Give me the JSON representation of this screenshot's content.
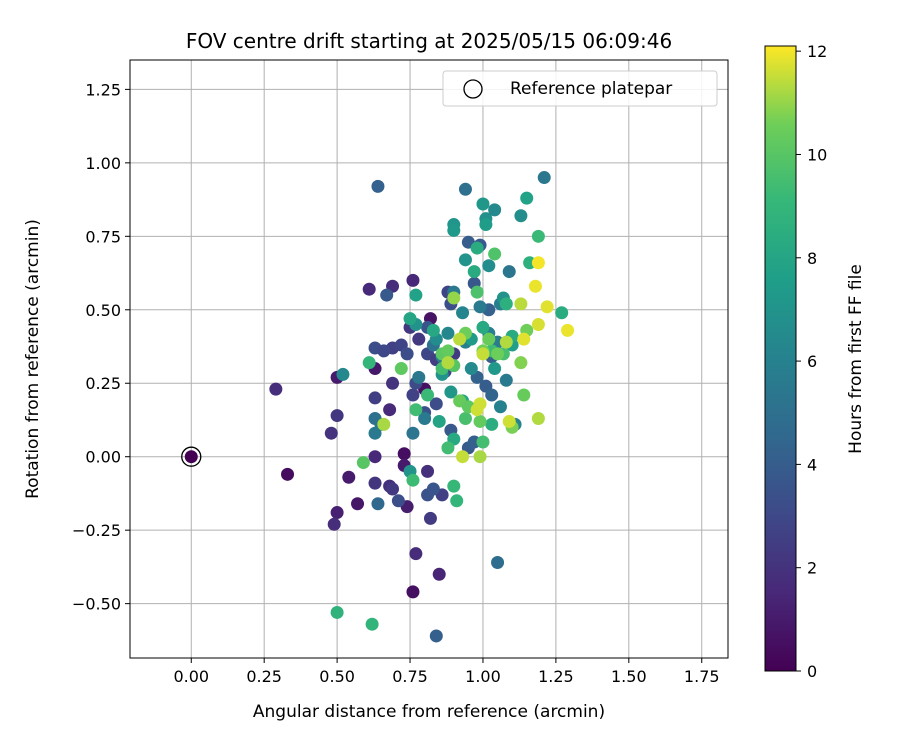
{
  "chart_data": {
    "type": "scatter",
    "title": "FOV centre drift starting at 2025/05/15 06:09:46",
    "xlabel": "Angular distance from reference (arcmin)",
    "ylabel": "Rotation from reference (arcmin)",
    "xlim": [
      -0.21,
      1.84
    ],
    "ylim": [
      -0.685,
      1.35
    ],
    "xticks": [
      "0.00",
      "0.25",
      "0.50",
      "0.75",
      "1.00",
      "1.25",
      "1.50",
      "1.75"
    ],
    "xtick_values": [
      0,
      0.25,
      0.5,
      0.75,
      1.0,
      1.25,
      1.5,
      1.75
    ],
    "yticks": [
      "−0.50",
      "−0.25",
      "0.00",
      "0.25",
      "0.50",
      "0.75",
      "1.00",
      "1.25"
    ],
    "ytick_values": [
      -0.5,
      -0.25,
      0,
      0.25,
      0.5,
      0.75,
      1.0,
      1.25
    ],
    "grid": true,
    "colormap": "viridis",
    "colorbar": {
      "label": "Hours from first FF file",
      "range": [
        0,
        12.1
      ],
      "ticks": [
        "0",
        "2",
        "4",
        "6",
        "8",
        "10",
        "12"
      ],
      "tick_values": [
        0,
        2,
        4,
        6,
        8,
        10,
        12
      ]
    },
    "legend": {
      "position": "top-right",
      "entries": [
        "Reference platepar"
      ]
    },
    "reference_point": {
      "x": 0.0,
      "y": 0.0,
      "c": 0.0
    },
    "points": [
      {
        "x": 0.33,
        "y": -0.06,
        "c": 0.4
      },
      {
        "x": 0.57,
        "y": -0.16,
        "c": 0.8
      },
      {
        "x": 0.76,
        "y": -0.46,
        "c": 0.6
      },
      {
        "x": 0.54,
        "y": -0.07,
        "c": 1.0
      },
      {
        "x": 0.5,
        "y": -0.19,
        "c": 1.2
      },
      {
        "x": 0.5,
        "y": 0.27,
        "c": 1.0
      },
      {
        "x": 0.82,
        "y": 0.47,
        "c": 0.7
      },
      {
        "x": 0.73,
        "y": 0.01,
        "c": 0.5
      },
      {
        "x": 0.63,
        "y": 0.3,
        "c": 0.9
      },
      {
        "x": 0.8,
        "y": 0.23,
        "c": 0.6
      },
      {
        "x": 0.74,
        "y": -0.17,
        "c": 1.1
      },
      {
        "x": 0.73,
        "y": -0.03,
        "c": 1.0
      },
      {
        "x": 0.29,
        "y": 0.23,
        "c": 1.8
      },
      {
        "x": 0.48,
        "y": 0.08,
        "c": 2.0
      },
      {
        "x": 0.5,
        "y": 0.14,
        "c": 2.2
      },
      {
        "x": 0.49,
        "y": -0.23,
        "c": 1.8
      },
      {
        "x": 0.61,
        "y": 0.57,
        "c": 1.6
      },
      {
        "x": 0.69,
        "y": 0.58,
        "c": 1.8
      },
      {
        "x": 0.76,
        "y": 0.6,
        "c": 1.5
      },
      {
        "x": 0.77,
        "y": -0.33,
        "c": 1.7
      },
      {
        "x": 0.85,
        "y": -0.4,
        "c": 1.4
      },
      {
        "x": 0.63,
        "y": 0.0,
        "c": 1.5
      },
      {
        "x": 0.68,
        "y": -0.1,
        "c": 1.9
      },
      {
        "x": 0.68,
        "y": 0.16,
        "c": 1.6
      },
      {
        "x": 0.63,
        "y": -0.09,
        "c": 2.1
      },
      {
        "x": 0.69,
        "y": -0.11,
        "c": 2.3
      },
      {
        "x": 0.81,
        "y": -0.05,
        "c": 1.9
      },
      {
        "x": 0.82,
        "y": -0.21,
        "c": 2.4
      },
      {
        "x": 0.63,
        "y": 0.2,
        "c": 2.5
      },
      {
        "x": 0.69,
        "y": 0.25,
        "c": 2.0
      },
      {
        "x": 0.69,
        "y": 0.37,
        "c": 2.6
      },
      {
        "x": 0.72,
        "y": 0.38,
        "c": 2.8
      },
      {
        "x": 0.75,
        "y": 0.44,
        "c": 2.2
      },
      {
        "x": 0.76,
        "y": 0.21,
        "c": 2.7
      },
      {
        "x": 0.78,
        "y": 0.4,
        "c": 2.3
      },
      {
        "x": 0.81,
        "y": 0.35,
        "c": 2.9
      },
      {
        "x": 0.84,
        "y": 0.33,
        "c": 2.5
      },
      {
        "x": 0.86,
        "y": -0.13,
        "c": 2.6
      },
      {
        "x": 0.88,
        "y": 0.56,
        "c": 2.8
      },
      {
        "x": 0.87,
        "y": 0.29,
        "c": 3.0
      },
      {
        "x": 0.9,
        "y": 0.35,
        "c": 2.4
      },
      {
        "x": 0.63,
        "y": 0.37,
        "c": 3.2
      },
      {
        "x": 0.66,
        "y": 0.36,
        "c": 3.0
      },
      {
        "x": 0.74,
        "y": 0.35,
        "c": 3.2
      },
      {
        "x": 0.71,
        "y": -0.15,
        "c": 3.3
      },
      {
        "x": 0.77,
        "y": 0.25,
        "c": 3.1
      },
      {
        "x": 0.8,
        "y": 0.15,
        "c": 3.4
      },
      {
        "x": 0.81,
        "y": -0.13,
        "c": 3.5
      },
      {
        "x": 0.83,
        "y": -0.11,
        "c": 3.6
      },
      {
        "x": 0.84,
        "y": 0.18,
        "c": 3.2
      },
      {
        "x": 0.89,
        "y": 0.52,
        "c": 3.3
      },
      {
        "x": 0.64,
        "y": 0.92,
        "c": 4.2
      },
      {
        "x": 0.67,
        "y": 0.55,
        "c": 3.8
      },
      {
        "x": 0.81,
        "y": 0.44,
        "c": 3.6
      },
      {
        "x": 0.89,
        "y": 0.09,
        "c": 3.8
      },
      {
        "x": 0.95,
        "y": 0.03,
        "c": 3.9
      },
      {
        "x": 0.95,
        "y": 0.73,
        "c": 4.0
      },
      {
        "x": 0.97,
        "y": 0.59,
        "c": 3.7
      },
      {
        "x": 0.97,
        "y": 0.05,
        "c": 4.1
      },
      {
        "x": 0.98,
        "y": 0.27,
        "c": 4.3
      },
      {
        "x": 0.99,
        "y": 0.72,
        "c": 3.9
      },
      {
        "x": 1.01,
        "y": 0.24,
        "c": 4.0
      },
      {
        "x": 1.02,
        "y": 0.5,
        "c": 4.2
      },
      {
        "x": 1.03,
        "y": 0.21,
        "c": 4.4
      },
      {
        "x": 1.03,
        "y": 0.34,
        "c": 4.1
      },
      {
        "x": 1.05,
        "y": -0.36,
        "c": 4.8
      },
      {
        "x": 0.84,
        "y": -0.61,
        "c": 4.1
      },
      {
        "x": 0.64,
        "y": -0.16,
        "c": 4.6
      },
      {
        "x": 0.63,
        "y": 0.13,
        "c": 5.0
      },
      {
        "x": 0.65,
        "y": 0.11,
        "c": 5.2
      },
      {
        "x": 0.63,
        "y": 0.08,
        "c": 5.5
      },
      {
        "x": 0.76,
        "y": 0.08,
        "c": 5.3
      },
      {
        "x": 0.78,
        "y": 0.27,
        "c": 5.4
      },
      {
        "x": 0.8,
        "y": 0.13,
        "c": 5.6
      },
      {
        "x": 0.83,
        "y": 0.38,
        "c": 5.1
      },
      {
        "x": 0.86,
        "y": 0.34,
        "c": 5.7
      },
      {
        "x": 0.9,
        "y": 0.56,
        "c": 5.5
      },
      {
        "x": 0.94,
        "y": 0.91,
        "c": 5.0
      },
      {
        "x": 0.94,
        "y": 0.39,
        "c": 5.9
      },
      {
        "x": 0.99,
        "y": 0.51,
        "c": 5.6
      },
      {
        "x": 1.02,
        "y": 0.42,
        "c": 5.8
      },
      {
        "x": 1.05,
        "y": 0.39,
        "c": 5.7
      },
      {
        "x": 1.06,
        "y": 0.17,
        "c": 6.0
      },
      {
        "x": 1.06,
        "y": 0.52,
        "c": 5.9
      },
      {
        "x": 1.08,
        "y": 0.26,
        "c": 5.6
      },
      {
        "x": 1.09,
        "y": 0.63,
        "c": 5.3
      },
      {
        "x": 1.11,
        "y": 0.11,
        "c": 6.1
      },
      {
        "x": 1.21,
        "y": 0.95,
        "c": 5.4
      },
      {
        "x": 0.52,
        "y": 0.28,
        "c": 6.4
      },
      {
        "x": 0.84,
        "y": 0.4,
        "c": 6.6
      },
      {
        "x": 0.88,
        "y": 0.42,
        "c": 6.3
      },
      {
        "x": 0.93,
        "y": 0.49,
        "c": 6.2
      },
      {
        "x": 0.96,
        "y": 0.3,
        "c": 6.5
      },
      {
        "x": 1.01,
        "y": 0.81,
        "c": 6.8
      },
      {
        "x": 1.02,
        "y": 0.65,
        "c": 6.6
      },
      {
        "x": 1.04,
        "y": 0.84,
        "c": 6.4
      },
      {
        "x": 1.07,
        "y": 0.54,
        "c": 6.9
      },
      {
        "x": 1.13,
        "y": 0.82,
        "c": 6.7
      },
      {
        "x": 0.75,
        "y": -0.05,
        "c": 7.0
      },
      {
        "x": 0.77,
        "y": 0.45,
        "c": 6.9
      },
      {
        "x": 0.86,
        "y": 0.28,
        "c": 7.0
      },
      {
        "x": 0.89,
        "y": 0.22,
        "c": 7.2
      },
      {
        "x": 0.9,
        "y": 0.79,
        "c": 7.1
      },
      {
        "x": 0.9,
        "y": 0.77,
        "c": 7.3
      },
      {
        "x": 0.94,
        "y": 0.67,
        "c": 7.0
      },
      {
        "x": 0.96,
        "y": 0.4,
        "c": 7.4
      },
      {
        "x": 1.0,
        "y": 0.86,
        "c": 7.2
      },
      {
        "x": 1.01,
        "y": 0.79,
        "c": 7.5
      },
      {
        "x": 1.04,
        "y": 0.3,
        "c": 7.3
      },
      {
        "x": 1.1,
        "y": 0.38,
        "c": 7.6
      },
      {
        "x": 1.15,
        "y": 0.88,
        "c": 7.8
      },
      {
        "x": 0.77,
        "y": 0.55,
        "c": 7.8
      },
      {
        "x": 0.75,
        "y": 0.47,
        "c": 8.0
      },
      {
        "x": 0.83,
        "y": 0.43,
        "c": 8.1
      },
      {
        "x": 0.85,
        "y": 0.12,
        "c": 7.9
      },
      {
        "x": 0.9,
        "y": 0.06,
        "c": 8.2
      },
      {
        "x": 0.93,
        "y": 0.19,
        "c": 8.0
      },
      {
        "x": 0.97,
        "y": 0.63,
        "c": 8.3
      },
      {
        "x": 0.98,
        "y": 0.71,
        "c": 8.4
      },
      {
        "x": 1.0,
        "y": 0.44,
        "c": 8.2
      },
      {
        "x": 1.03,
        "y": 0.11,
        "c": 8.5
      },
      {
        "x": 1.08,
        "y": 0.52,
        "c": 8.6
      },
      {
        "x": 1.1,
        "y": 0.41,
        "c": 8.3
      },
      {
        "x": 1.16,
        "y": 0.66,
        "c": 8.6
      },
      {
        "x": 1.27,
        "y": 0.49,
        "c": 8.4
      },
      {
        "x": 0.5,
        "y": -0.53,
        "c": 8.8
      },
      {
        "x": 0.62,
        "y": -0.57,
        "c": 8.9
      },
      {
        "x": 0.61,
        "y": 0.32,
        "c": 9.0
      },
      {
        "x": 0.76,
        "y": -0.08,
        "c": 9.3
      },
      {
        "x": 0.77,
        "y": 0.16,
        "c": 9.4
      },
      {
        "x": 0.81,
        "y": 0.21,
        "c": 9.2
      },
      {
        "x": 0.86,
        "y": 0.3,
        "c": 9.5
      },
      {
        "x": 0.88,
        "y": 0.03,
        "c": 9.4
      },
      {
        "x": 0.9,
        "y": -0.1,
        "c": 9.1
      },
      {
        "x": 0.91,
        "y": -0.15,
        "c": 9.0
      },
      {
        "x": 0.94,
        "y": 0.13,
        "c": 9.6
      },
      {
        "x": 0.98,
        "y": 0.56,
        "c": 9.7
      },
      {
        "x": 1.0,
        "y": 0.05,
        "c": 9.5
      },
      {
        "x": 1.03,
        "y": 0.36,
        "c": 9.3
      },
      {
        "x": 1.04,
        "y": 0.69,
        "c": 9.8
      },
      {
        "x": 1.07,
        "y": 0.35,
        "c": 9.6
      },
      {
        "x": 1.19,
        "y": 0.75,
        "c": 9.2
      },
      {
        "x": 0.59,
        "y": -0.02,
        "c": 10.0
      },
      {
        "x": 0.72,
        "y": 0.3,
        "c": 10.2
      },
      {
        "x": 0.86,
        "y": 0.35,
        "c": 10.1
      },
      {
        "x": 0.88,
        "y": 0.36,
        "c": 10.3
      },
      {
        "x": 0.9,
        "y": 0.31,
        "c": 10.0
      },
      {
        "x": 0.92,
        "y": 0.19,
        "c": 10.4
      },
      {
        "x": 0.94,
        "y": 0.42,
        "c": 10.5
      },
      {
        "x": 0.95,
        "y": 0.17,
        "c": 10.2
      },
      {
        "x": 0.99,
        "y": 0.12,
        "c": 10.3
      },
      {
        "x": 1.0,
        "y": 0.36,
        "c": 10.6
      },
      {
        "x": 1.02,
        "y": 0.4,
        "c": 10.4
      },
      {
        "x": 1.05,
        "y": 0.35,
        "c": 10.5
      },
      {
        "x": 1.1,
        "y": 0.1,
        "c": 10.7
      },
      {
        "x": 1.13,
        "y": 0.32,
        "c": 10.8
      },
      {
        "x": 1.14,
        "y": 0.21,
        "c": 10.4
      },
      {
        "x": 1.15,
        "y": 0.43,
        "c": 10.6
      },
      {
        "x": 0.66,
        "y": 0.11,
        "c": 11.2
      },
      {
        "x": 0.88,
        "y": 0.32,
        "c": 11.3
      },
      {
        "x": 0.9,
        "y": 0.54,
        "c": 11.0
      },
      {
        "x": 0.92,
        "y": 0.4,
        "c": 11.4
      },
      {
        "x": 0.93,
        "y": 0.0,
        "c": 11.5
      },
      {
        "x": 0.98,
        "y": 0.16,
        "c": 11.6
      },
      {
        "x": 0.99,
        "y": 0.0,
        "c": 11.2
      },
      {
        "x": 1.0,
        "y": 0.35,
        "c": 11.5
      },
      {
        "x": 1.08,
        "y": 0.39,
        "c": 11.3
      },
      {
        "x": 1.09,
        "y": 0.12,
        "c": 11.6
      },
      {
        "x": 1.13,
        "y": 0.52,
        "c": 11.4
      },
      {
        "x": 1.14,
        "y": 0.4,
        "c": 11.8
      },
      {
        "x": 1.18,
        "y": 0.58,
        "c": 11.9
      },
      {
        "x": 1.19,
        "y": 0.45,
        "c": 11.7
      },
      {
        "x": 1.19,
        "y": 0.66,
        "c": 12.0
      },
      {
        "x": 1.22,
        "y": 0.51,
        "c": 11.8
      },
      {
        "x": 1.19,
        "y": 0.13,
        "c": 11.3
      },
      {
        "x": 1.29,
        "y": 0.43,
        "c": 11.9
      },
      {
        "x": 0.99,
        "y": 0.18,
        "c": 11.6
      }
    ]
  }
}
